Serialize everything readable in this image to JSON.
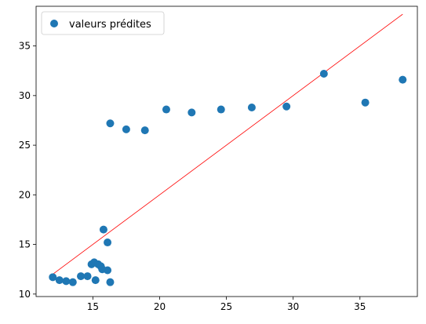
{
  "chart_data": {
    "type": "scatter",
    "title": "",
    "xlabel": "",
    "ylabel": "",
    "xlim": [
      10.75,
      39.3
    ],
    "ylim": [
      9.75,
      39.0
    ],
    "xticks": [
      15,
      20,
      25,
      30,
      35
    ],
    "yticks": [
      10,
      15,
      20,
      25,
      30,
      35
    ],
    "grid": false,
    "legend": "top-left",
    "series": [
      {
        "name": "valeurs prédites",
        "color": "#1f77b4",
        "points": [
          [
            12.0,
            11.7
          ],
          [
            12.5,
            11.4
          ],
          [
            13.0,
            11.3
          ],
          [
            13.5,
            11.2
          ],
          [
            14.1,
            11.8
          ],
          [
            14.6,
            11.8
          ],
          [
            14.9,
            13.0
          ],
          [
            15.1,
            13.2
          ],
          [
            15.2,
            11.4
          ],
          [
            15.4,
            13.0
          ],
          [
            15.6,
            12.8
          ],
          [
            15.7,
            12.5
          ],
          [
            15.8,
            16.5
          ],
          [
            16.1,
            12.4
          ],
          [
            16.1,
            15.2
          ],
          [
            16.3,
            11.2
          ],
          [
            16.3,
            27.2
          ],
          [
            17.5,
            26.6
          ],
          [
            18.9,
            26.5
          ],
          [
            20.5,
            28.6
          ],
          [
            22.4,
            28.3
          ],
          [
            24.6,
            28.6
          ],
          [
            26.9,
            28.8
          ],
          [
            29.5,
            28.9
          ],
          [
            32.3,
            32.2
          ],
          [
            35.4,
            29.3
          ],
          [
            38.2,
            31.6
          ]
        ]
      }
    ],
    "reference_line": {
      "color": "#ff0000",
      "points": [
        [
          12.0,
          12.0
        ],
        [
          38.2,
          38.2
        ]
      ]
    }
  }
}
